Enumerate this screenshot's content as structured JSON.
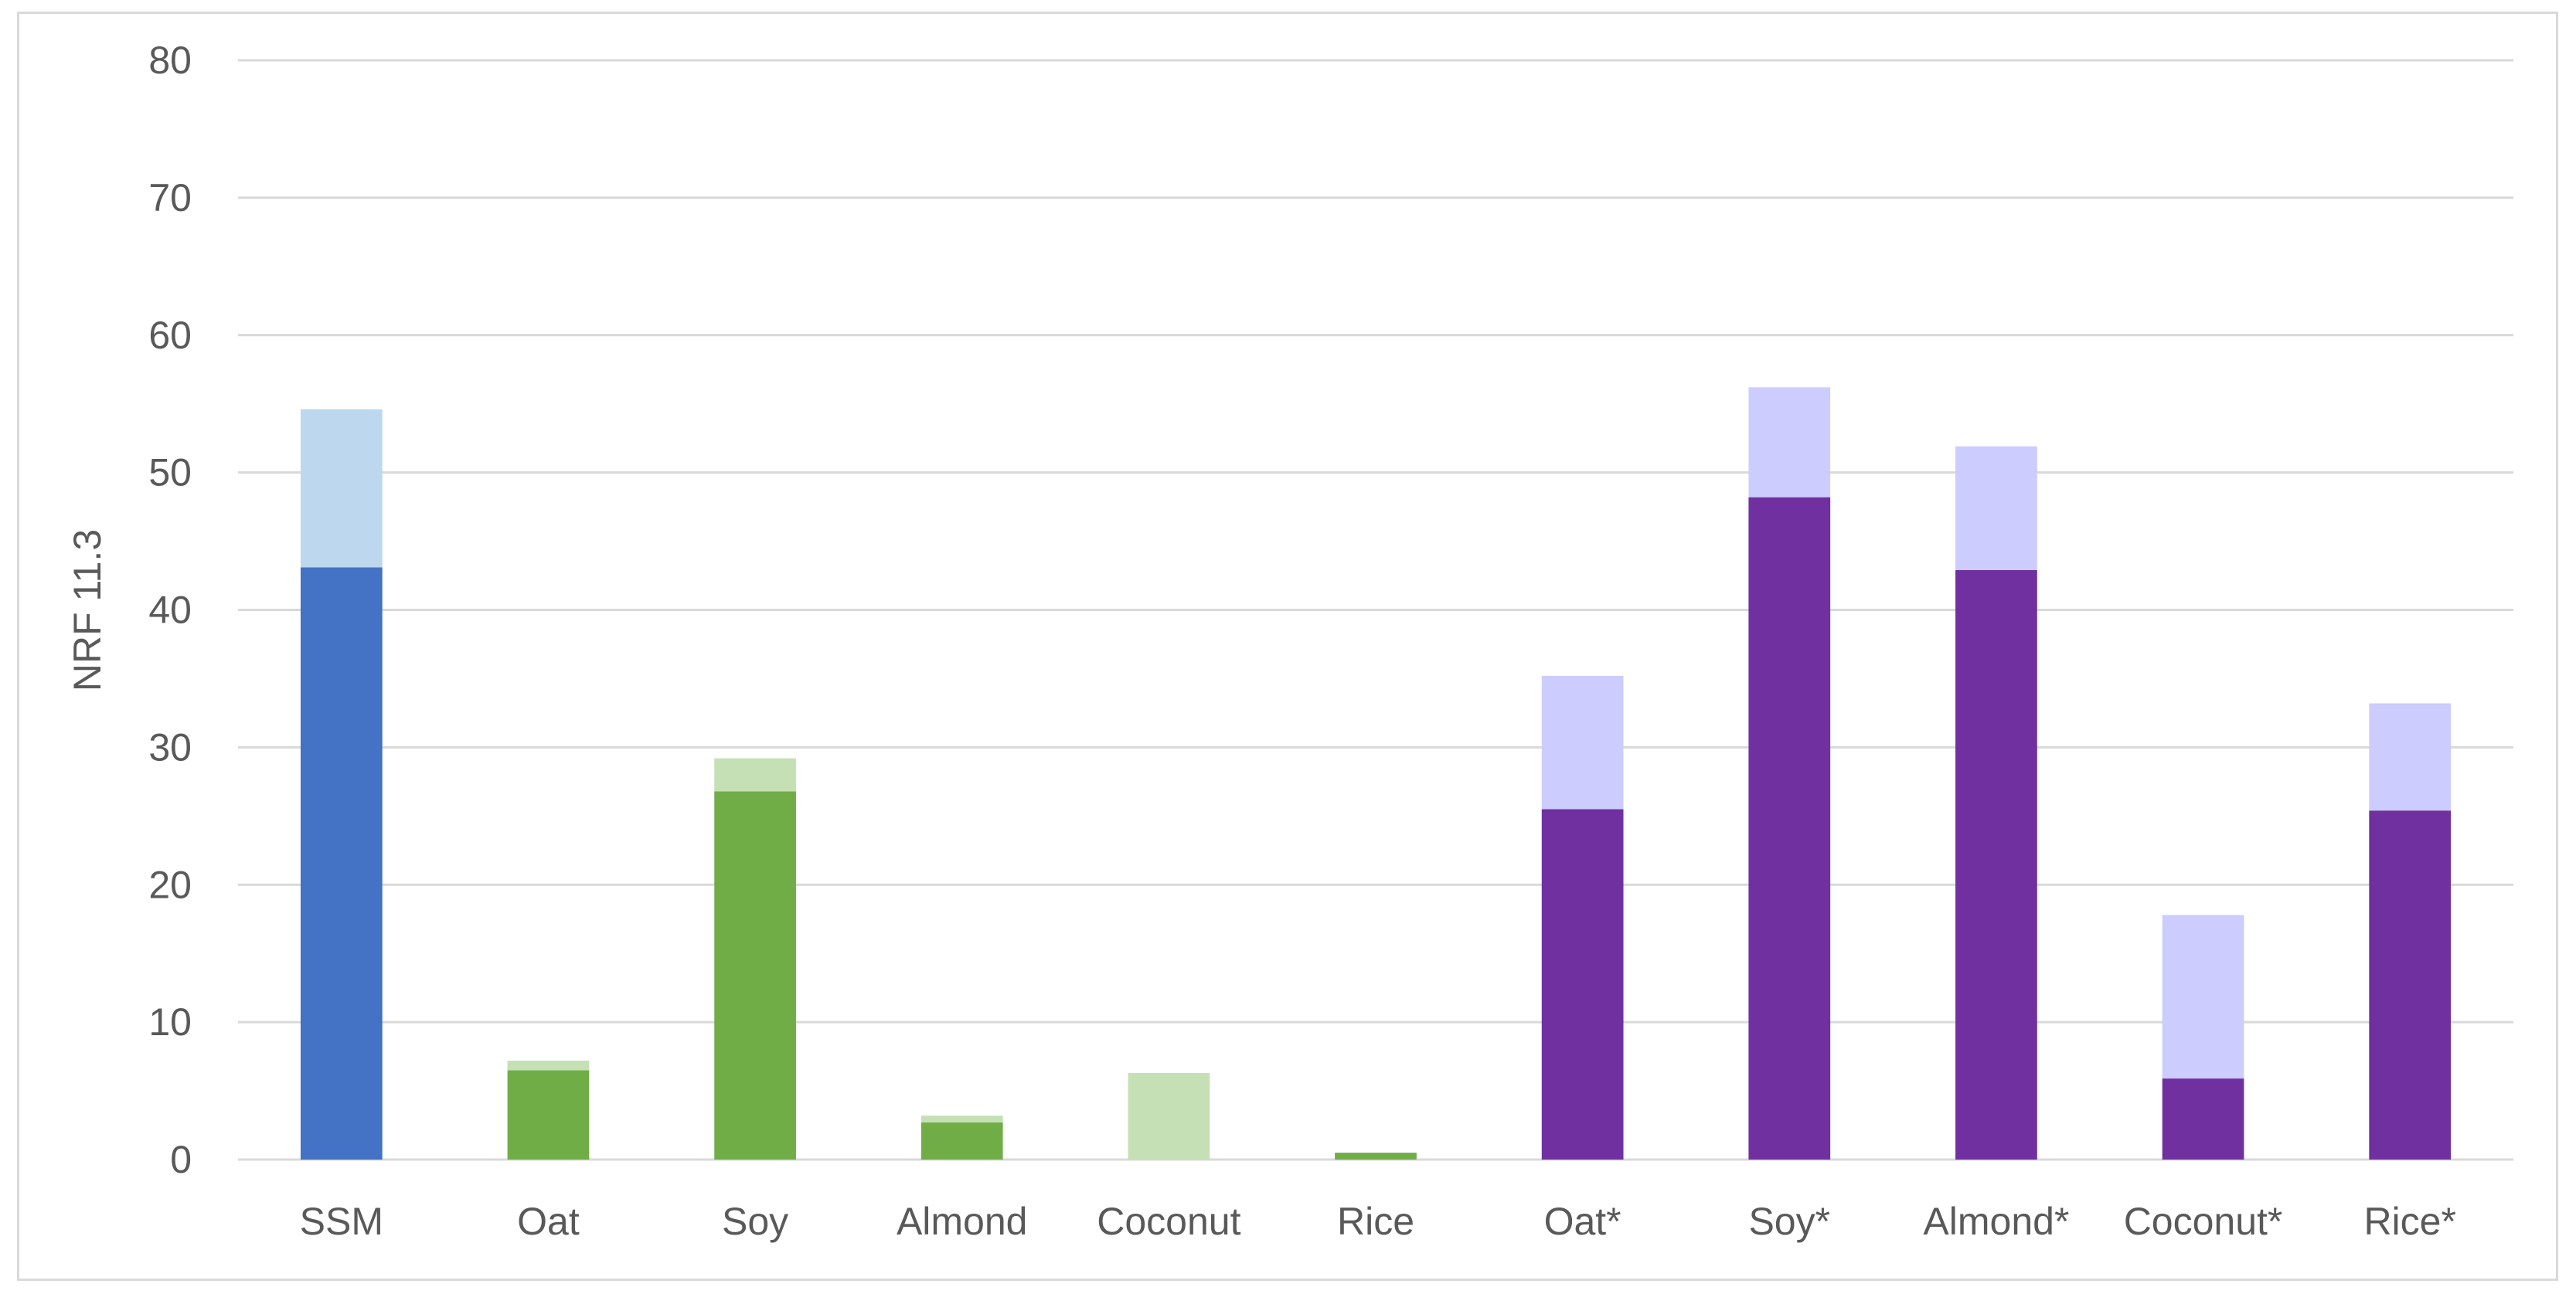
{
  "chart_data": {
    "type": "bar",
    "stacked": true,
    "title": "",
    "xlabel": "",
    "ylabel": "NRF 11.3",
    "ylim": [
      0,
      80
    ],
    "yticks": [
      0,
      10,
      20,
      30,
      40,
      50,
      60,
      70,
      80
    ],
    "grid": true,
    "categories": [
      "SSM",
      "Oat",
      "Soy",
      "Almond",
      "Coconut",
      "Rice",
      "Oat*",
      "Soy*",
      "Almond*",
      "Coconut*",
      "Rice*"
    ],
    "series": [
      {
        "values": [
          43.1,
          6.5,
          26.8,
          2.7,
          0,
          0.5,
          25.5,
          48.2,
          42.9,
          5.9,
          25.4
        ],
        "colors": [
          "#4472c4",
          "#70ad47",
          "#70ad47",
          "#70ad47",
          "#70ad47",
          "#70ad47",
          "#7030a0",
          "#7030a0",
          "#7030a0",
          "#7030a0",
          "#7030a0"
        ]
      },
      {
        "values": [
          11.5,
          0.7,
          2.4,
          0.5,
          6.3,
          0,
          9.7,
          8.0,
          9.0,
          11.9,
          7.8
        ],
        "colors": [
          "#bdd7ee",
          "#c5e0b4",
          "#c5e0b4",
          "#c5e0b4",
          "#c5e0b4",
          "#c5e0b4",
          "#ccccff",
          "#ccccff",
          "#ccccff",
          "#ccccff",
          "#ccccff"
        ]
      }
    ],
    "colors": {
      "grid": "#d9d9d9",
      "text": "#595959"
    }
  }
}
